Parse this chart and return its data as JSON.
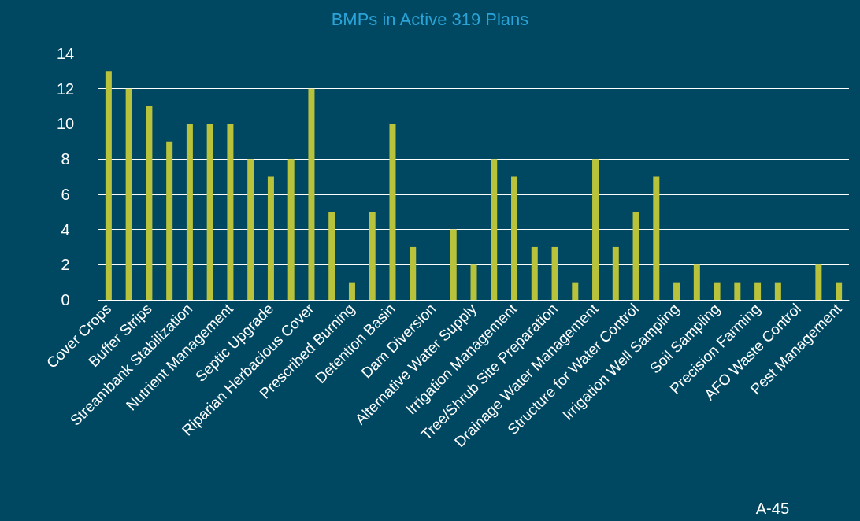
{
  "chart_data": {
    "type": "bar",
    "title": "BMPs in Active 319 Plans",
    "categories": [
      "Cover Crops",
      null,
      "Buffer Strips",
      null,
      "Streambank Stabilization",
      null,
      "Nutrient Management",
      null,
      "Septic Upgrade",
      null,
      "Riparian Herbacious Cover",
      null,
      "Prescribed Burning",
      null,
      "Detention Basin",
      null,
      "Dam Diversion",
      null,
      "Alternative Water Supply",
      null,
      "Irrigation Management",
      null,
      "Tree/Shrub Site Preparation",
      null,
      "Drainage Water Management",
      null,
      "Structure for Water Control",
      null,
      "Irrigation Well Sampling",
      null,
      "Soil Sampling",
      null,
      "Precision Farming",
      null,
      "AFO Waste Control",
      null,
      "Pest Management"
    ],
    "values": [
      13,
      12,
      11,
      9,
      10,
      10,
      10,
      8,
      7,
      8,
      12,
      5,
      1,
      5,
      10,
      3,
      0,
      4,
      2,
      8,
      7,
      3,
      3,
      1,
      8,
      3,
      5,
      7,
      1,
      2,
      1,
      1,
      1,
      1,
      0,
      2,
      1
    ],
    "color": "#b8c23a",
    "ylim": [
      0,
      14
    ],
    "yticks": [
      0,
      2,
      4,
      6,
      8,
      10,
      12,
      14
    ],
    "grid": "y",
    "annotations": [
      "A-45"
    ]
  }
}
